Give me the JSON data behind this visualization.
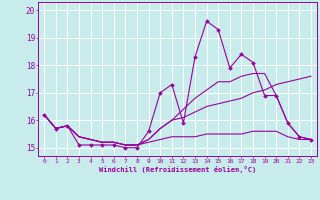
{
  "xlabel": "Windchill (Refroidissement éolien,°C)",
  "background_color": "#c8ecec",
  "line_color": "#990099",
  "grid_color": "#ffffff",
  "xlim": [
    -0.5,
    23.5
  ],
  "ylim": [
    14.7,
    20.3
  ],
  "yticks": [
    15,
    16,
    17,
    18,
    19,
    20
  ],
  "xticks": [
    0,
    1,
    2,
    3,
    4,
    5,
    6,
    7,
    8,
    9,
    10,
    11,
    12,
    13,
    14,
    15,
    16,
    17,
    18,
    19,
    20,
    21,
    22,
    23
  ],
  "series": {
    "main": [
      16.2,
      15.7,
      15.8,
      15.1,
      15.1,
      15.1,
      15.1,
      15.0,
      15.0,
      15.6,
      17.0,
      17.3,
      15.9,
      18.3,
      19.6,
      19.3,
      17.9,
      18.4,
      18.1,
      16.9,
      16.9,
      15.9,
      15.4,
      15.3
    ],
    "line2": [
      16.2,
      15.7,
      15.8,
      15.4,
      15.3,
      15.2,
      15.2,
      15.1,
      15.1,
      15.3,
      15.7,
      16.0,
      16.1,
      16.3,
      16.5,
      16.6,
      16.7,
      16.8,
      17.0,
      17.1,
      17.3,
      17.4,
      17.5,
      17.6
    ],
    "line3": [
      16.2,
      15.7,
      15.8,
      15.4,
      15.3,
      15.2,
      15.2,
      15.1,
      15.1,
      15.2,
      15.3,
      15.4,
      15.4,
      15.4,
      15.5,
      15.5,
      15.5,
      15.5,
      15.6,
      15.6,
      15.6,
      15.4,
      15.3,
      15.3
    ],
    "line4": [
      16.2,
      15.7,
      15.8,
      15.4,
      15.3,
      15.2,
      15.2,
      15.1,
      15.1,
      15.3,
      15.7,
      16.0,
      16.4,
      16.8,
      17.1,
      17.4,
      17.4,
      17.6,
      17.7,
      17.7,
      16.9,
      15.9,
      15.4,
      15.3
    ]
  }
}
